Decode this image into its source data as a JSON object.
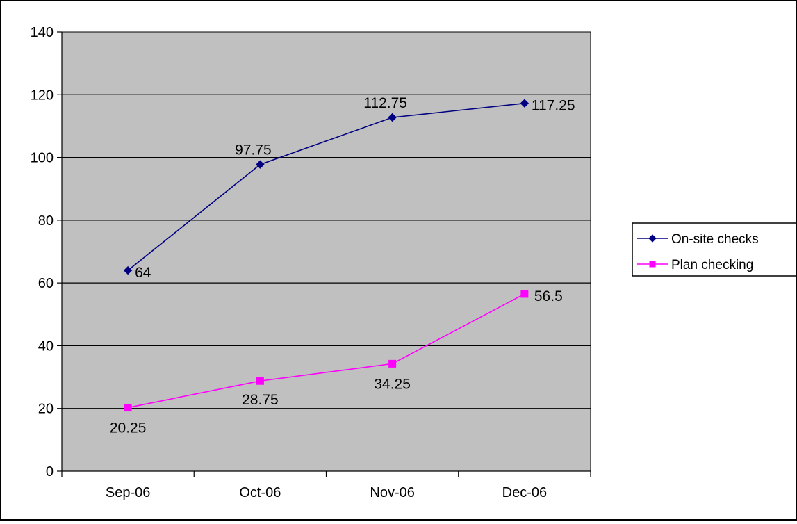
{
  "chart_data": {
    "type": "line",
    "categories": [
      "Sep-06",
      "Oct-06",
      "Nov-06",
      "Dec-06"
    ],
    "series": [
      {
        "name": "On-site checks",
        "values": [
          64,
          97.75,
          112.75,
          117.25
        ],
        "color": "#000080",
        "marker": "diamond"
      },
      {
        "name": "Plan checking",
        "values": [
          20.25,
          28.75,
          34.25,
          56.5
        ],
        "color": "#FF00FF",
        "marker": "square"
      }
    ],
    "data_labels": [
      {
        "series": 0,
        "labels": [
          "64",
          "97.75",
          "112.75",
          "117.25"
        ]
      },
      {
        "series": 1,
        "labels": [
          "20.25",
          "28.75",
          "34.25",
          "56.5"
        ]
      }
    ],
    "yticks": [
      "0",
      "20",
      "40",
      "60",
      "80",
      "100",
      "120",
      "140"
    ],
    "ylim": [
      0,
      140
    ],
    "title": "",
    "xlabel": "",
    "ylabel": "",
    "grid": "horizontal",
    "legend_position": "right",
    "plot_background": "#C0C0C0"
  }
}
